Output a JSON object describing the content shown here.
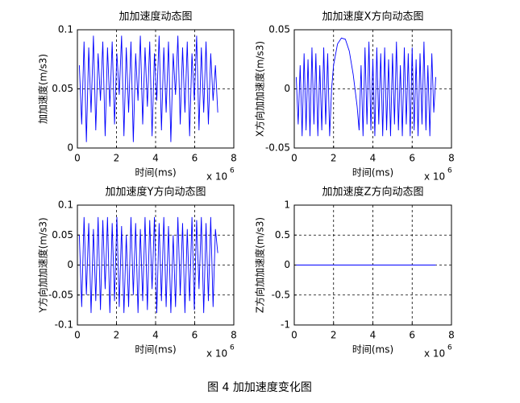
{
  "chart_data": [
    {
      "type": "line",
      "title": "加加速度动态图",
      "xlabel": "时间(ms)",
      "ylabel": "加加速度(m/s3)",
      "x_multiplier": {
        "base": "x 10",
        "exponent": "6"
      },
      "xlim": [
        0,
        8
      ],
      "xticks": [
        0,
        2,
        4,
        6,
        8
      ],
      "ylim": [
        0,
        0.1
      ],
      "yticks": [
        0,
        0.05,
        0.1
      ],
      "grid": true,
      "series": [
        {
          "name": "加加速度",
          "color": "#0000ff",
          "x": [
            0.1,
            0.22,
            0.34,
            0.46,
            0.58,
            0.7,
            0.82,
            0.94,
            1.06,
            1.18,
            1.3,
            1.42,
            1.54,
            1.66,
            1.78,
            1.9,
            2.02,
            2.14,
            2.26,
            2.38,
            2.5,
            2.62,
            2.74,
            2.86,
            2.98,
            3.1,
            3.22,
            3.34,
            3.46,
            3.58,
            3.7,
            3.82,
            3.94,
            4.06,
            4.18,
            4.3,
            4.42,
            4.54,
            4.66,
            4.78,
            4.9,
            5.02,
            5.14,
            5.26,
            5.38,
            5.5,
            5.62,
            5.74,
            5.86,
            5.98,
            6.1,
            6.22,
            6.34,
            6.46,
            6.58,
            6.7,
            6.82,
            6.94,
            7.06,
            7.18
          ],
          "values": [
            0.07,
            0.02,
            0.09,
            0.005,
            0.085,
            0.03,
            0.095,
            0.015,
            0.08,
            0.04,
            0.09,
            0.01,
            0.085,
            0.035,
            0.09,
            0.02,
            0.08,
            0.045,
            0.095,
            0.01,
            0.085,
            0.03,
            0.09,
            0.005,
            0.08,
            0.04,
            0.095,
            0.02,
            0.085,
            0.035,
            0.09,
            0.01,
            0.08,
            0.04,
            0.095,
            0.015,
            0.085,
            0.03,
            0.09,
            0.005,
            0.08,
            0.045,
            0.095,
            0.02,
            0.085,
            0.03,
            0.09,
            0.01,
            0.08,
            0.04,
            0.095,
            0.015,
            0.085,
            0.03,
            0.09,
            0.02,
            0.08,
            0.04,
            0.07,
            0.03
          ]
        }
      ]
    },
    {
      "type": "line",
      "title": "加加速度X方向动态图",
      "xlabel": "时间(ms)",
      "ylabel": "X方向加加速度(m/s3)",
      "x_multiplier": {
        "base": "x 10",
        "exponent": "6"
      },
      "xlim": [
        0,
        8
      ],
      "xticks": [
        0,
        2,
        4,
        6,
        8
      ],
      "ylim": [
        -0.05,
        0.05
      ],
      "yticks": [
        -0.05,
        0,
        0.05
      ],
      "grid": true,
      "series": [
        {
          "name": "X方向加加速度",
          "color": "#0000ff",
          "x": [
            0.1,
            0.2,
            0.3,
            0.4,
            0.5,
            0.6,
            0.7,
            0.8,
            0.9,
            1.0,
            1.1,
            1.2,
            1.3,
            1.4,
            1.5,
            1.6,
            1.7,
            1.8,
            1.9,
            2.0,
            2.2,
            2.4,
            2.6,
            2.8,
            3.0,
            3.2,
            3.3,
            3.4,
            3.5,
            3.6,
            3.7,
            3.8,
            3.9,
            4.0,
            4.1,
            4.2,
            4.3,
            4.4,
            4.5,
            4.6,
            4.7,
            4.8,
            4.9,
            5.0,
            5.1,
            5.2,
            5.3,
            5.4,
            5.5,
            5.6,
            5.7,
            5.8,
            5.9,
            6.0,
            6.1,
            6.2,
            6.3,
            6.4,
            6.5,
            6.6,
            6.7,
            6.8,
            6.9,
            7.0,
            7.1,
            7.2
          ],
          "values": [
            0.01,
            -0.03,
            0.02,
            -0.04,
            0.03,
            -0.035,
            0.025,
            -0.04,
            0.035,
            -0.03,
            0.03,
            -0.04,
            0.02,
            -0.035,
            0.035,
            -0.03,
            0.03,
            -0.04,
            0.0,
            0.02,
            0.038,
            0.043,
            0.042,
            0.032,
            0.012,
            -0.015,
            -0.035,
            0.02,
            -0.04,
            0.035,
            -0.03,
            0.04,
            -0.035,
            0.025,
            -0.04,
            0.035,
            -0.03,
            0.03,
            -0.04,
            0.035,
            -0.035,
            0.025,
            -0.04,
            0.03,
            -0.03,
            0.04,
            -0.035,
            0.02,
            -0.04,
            0.035,
            -0.03,
            0.03,
            -0.04,
            0.035,
            -0.035,
            0.025,
            -0.04,
            0.03,
            -0.03,
            0.04,
            -0.035,
            0.02,
            -0.04,
            0.03,
            -0.02,
            0.01
          ]
        }
      ]
    },
    {
      "type": "line",
      "title": "加加速度Y方向动态图",
      "xlabel": "时间(ms)",
      "ylabel": "Y方向加加速度(m/s3)",
      "x_multiplier": {
        "base": "x 10",
        "exponent": "6"
      },
      "xlim": [
        0,
        8
      ],
      "xticks": [
        0,
        2,
        4,
        6,
        8
      ],
      "ylim": [
        -0.1,
        0.1
      ],
      "yticks": [
        -0.1,
        -0.05,
        0,
        0.05,
        0.1
      ],
      "grid": true,
      "series": [
        {
          "name": "Y方向加加速度",
          "color": "#0000ff",
          "x": [
            0.1,
            0.22,
            0.34,
            0.46,
            0.58,
            0.7,
            0.82,
            0.94,
            1.06,
            1.18,
            1.3,
            1.42,
            1.54,
            1.66,
            1.78,
            1.9,
            2.02,
            2.14,
            2.26,
            2.38,
            2.5,
            2.62,
            2.74,
            2.86,
            2.98,
            3.1,
            3.22,
            3.34,
            3.46,
            3.58,
            3.7,
            3.82,
            3.94,
            4.06,
            4.18,
            4.3,
            4.42,
            4.54,
            4.66,
            4.78,
            4.9,
            5.02,
            5.14,
            5.26,
            5.38,
            5.5,
            5.62,
            5.74,
            5.86,
            5.98,
            6.1,
            6.22,
            6.34,
            6.46,
            6.58,
            6.7,
            6.82,
            6.94,
            7.06,
            7.18
          ],
          "values": [
            0.05,
            -0.07,
            0.08,
            -0.05,
            0.07,
            -0.08,
            0.06,
            -0.06,
            0.08,
            -0.075,
            0.075,
            -0.04,
            0.08,
            -0.08,
            0.07,
            -0.06,
            0.08,
            -0.07,
            0.065,
            -0.08,
            0.05,
            -0.07,
            0.08,
            -0.05,
            0.07,
            -0.08,
            0.06,
            -0.06,
            0.08,
            -0.075,
            0.075,
            -0.04,
            0.08,
            -0.08,
            0.07,
            -0.06,
            0.08,
            -0.07,
            0.065,
            -0.08,
            0.05,
            -0.07,
            0.08,
            -0.05,
            0.07,
            -0.08,
            0.06,
            -0.06,
            0.08,
            -0.075,
            0.075,
            -0.04,
            0.08,
            -0.08,
            0.07,
            -0.06,
            0.08,
            -0.07,
            0.06,
            0.02
          ]
        }
      ]
    },
    {
      "type": "line",
      "title": "加加速度Z方向动态图",
      "xlabel": "时间(ms)",
      "ylabel": "Z方向加加速度(m/s3)",
      "x_multiplier": {
        "base": "x 10",
        "exponent": "6"
      },
      "xlim": [
        0,
        8
      ],
      "xticks": [
        0,
        2,
        4,
        6,
        8
      ],
      "ylim": [
        -1,
        1
      ],
      "yticks": [
        -1,
        -0.5,
        0,
        0.5,
        1
      ],
      "grid": true,
      "series": [
        {
          "name": "Z方向加加速度",
          "color": "#0000ff",
          "x": [
            0.1,
            7.2
          ],
          "values": [
            0,
            0
          ]
        }
      ]
    }
  ],
  "caption": "图 4 加加速度变化图"
}
